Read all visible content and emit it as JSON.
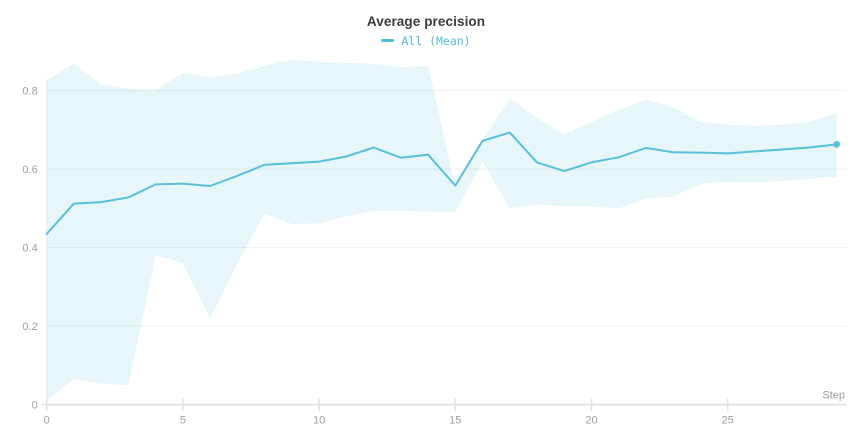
{
  "panel": {
    "title": "Average precision",
    "legend_label": "All (Mean)"
  },
  "chart_data": {
    "type": "line",
    "title": "Average precision",
    "xlabel": "Step",
    "ylabel": "",
    "legend": [
      {
        "label": "All (Mean)",
        "color": "#4fbcd9",
        "position": "top-center"
      }
    ],
    "grid": "horizontal",
    "xlim": [
      0,
      29.35
    ],
    "ylim": [
      0,
      0.9
    ],
    "x_ticks": [
      {
        "v": 0,
        "label": "0"
      },
      {
        "v": 5,
        "label": "5"
      },
      {
        "v": 10,
        "label": "10"
      },
      {
        "v": 15,
        "label": "15"
      },
      {
        "v": 20,
        "label": "20"
      },
      {
        "v": 25,
        "label": "25"
      }
    ],
    "y_ticks": [
      {
        "v": 0,
        "label": "0"
      },
      {
        "v": 0.2,
        "label": "0.2"
      },
      {
        "v": 0.4,
        "label": "0.4"
      },
      {
        "v": 0.6,
        "label": "0.6"
      },
      {
        "v": 0.8,
        "label": "0.8"
      }
    ],
    "steps": [
      0,
      1,
      2,
      3,
      4,
      5,
      6,
      7,
      8,
      9,
      10,
      11,
      12,
      13,
      14,
      15,
      16,
      17,
      18,
      19,
      20,
      21,
      22,
      23,
      24,
      25,
      26,
      27,
      28,
      29
    ],
    "series": [
      {
        "name": "All (Mean)",
        "mean": [
          0.435,
          0.512,
          0.516,
          0.528,
          0.561,
          0.563,
          0.557,
          0.583,
          0.611,
          0.615,
          0.619,
          0.632,
          0.655,
          0.629,
          0.637,
          0.558,
          0.672,
          0.693,
          0.617,
          0.595,
          0.617,
          0.63,
          0.654,
          0.643,
          0.642,
          0.64,
          0.645,
          0.65,
          0.655,
          0.663
        ],
        "band_max": [
          0.825,
          0.87,
          0.815,
          0.805,
          0.801,
          0.845,
          0.833,
          0.843,
          0.864,
          0.878,
          0.874,
          0.871,
          0.868,
          0.859,
          0.864,
          0.558,
          0.675,
          0.78,
          0.73,
          0.688,
          0.72,
          0.75,
          0.777,
          0.757,
          0.72,
          0.713,
          0.71,
          0.713,
          0.72,
          0.744
        ],
        "band_min": [
          0.01,
          0.066,
          0.053,
          0.05,
          0.38,
          0.36,
          0.22,
          0.36,
          0.487,
          0.46,
          0.462,
          0.48,
          0.494,
          0.494,
          0.492,
          0.49,
          0.62,
          0.5,
          0.51,
          0.505,
          0.505,
          0.5,
          0.525,
          0.53,
          0.563,
          0.568,
          0.565,
          0.57,
          0.575,
          0.58
        ],
        "end_marker": true
      }
    ],
    "colors": {
      "line": "#58c0da",
      "band": "rgba(88,192,218,0.15)",
      "grid": "#f0f0f0",
      "axis": "#e2e2e2",
      "tick_text": "#9aa0a3",
      "title_text": "#3b3b3b"
    }
  }
}
